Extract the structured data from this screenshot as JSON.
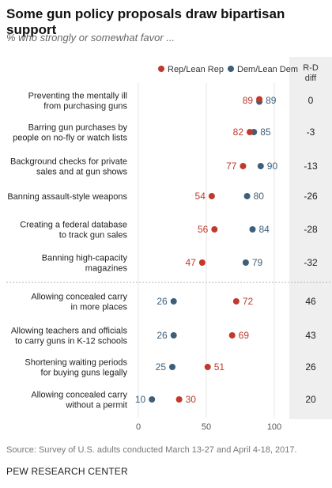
{
  "title": "Some gun policy proposals draw bipartisan support",
  "subtitle": "% who strongly or somewhat favor ...",
  "source": "Source: Survey of U.S. adults conducted March 13-27 and April 4-18, 2017.",
  "org": "PEW RESEARCH CENTER",
  "diff_header": [
    "R-D",
    "diff"
  ],
  "colors": {
    "rep": "#c0392b",
    "dem": "#3d5f7a"
  },
  "chart_data": {
    "type": "scatter",
    "title": "Some gun policy proposals draw bipartisan support",
    "subtitle": "% who strongly or somewhat favor ...",
    "xlim": [
      0,
      100
    ],
    "xticks": [
      "0",
      "50",
      "100"
    ],
    "legend": "top",
    "series": [
      {
        "name": "Rep/Lean Rep",
        "color": "#c0392b"
      },
      {
        "name": "Dem/Lean Dem",
        "color": "#3d5f7a"
      }
    ],
    "rows": [
      {
        "label": [
          "Preventing the mentally ill",
          "from purchasing guns"
        ],
        "rep": 89,
        "dem": 89,
        "diff": "0"
      },
      {
        "label": [
          "Barring gun purchases by",
          "people on no-fly or watch lists"
        ],
        "rep": 82,
        "dem": 85,
        "diff": "-3"
      },
      {
        "label": [
          "Background checks for private",
          "sales and at gun shows"
        ],
        "rep": 77,
        "dem": 90,
        "diff": "-13"
      },
      {
        "label": [
          "Banning assault-style weapons"
        ],
        "rep": 54,
        "dem": 80,
        "diff": "-26"
      },
      {
        "label": [
          "Creating a federal database",
          "to track gun sales"
        ],
        "rep": 56,
        "dem": 84,
        "diff": "-28"
      },
      {
        "label": [
          "Banning high-capacity",
          "magazines"
        ],
        "rep": 47,
        "dem": 79,
        "diff": "-32"
      },
      {
        "label": [
          "Allowing concealed carry",
          "in more places"
        ],
        "rep": 72,
        "dem": 26,
        "diff": "46"
      },
      {
        "label": [
          "Allowing teachers and officials",
          "to carry guns in K-12 schools"
        ],
        "rep": 69,
        "dem": 26,
        "diff": "43"
      },
      {
        "label": [
          "Shortening waiting periods",
          "for buying guns legally"
        ],
        "rep": 51,
        "dem": 25,
        "diff": "26"
      },
      {
        "label": [
          "Allowing concealed carry",
          "without a permit"
        ],
        "rep": 30,
        "dem": 10,
        "diff": "20"
      }
    ]
  }
}
